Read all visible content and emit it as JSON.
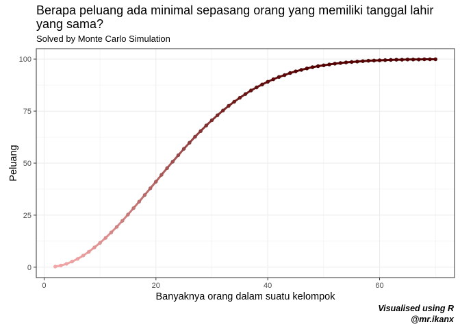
{
  "chart_data": {
    "type": "line",
    "title": "Berapa peluang ada minimal sepasang orang yang memiliki tanggal lahir yang sama?",
    "subtitle": "Solved by Monte Carlo Simulation",
    "xlabel": "Banyaknya orang dalam suatu kelompok",
    "ylabel": "Peluang",
    "caption_line1": "Visualised using R",
    "caption_line2": "@mr.ikanx",
    "xlim": [
      -1.4,
      73.4
    ],
    "ylim": [
      -5,
      105
    ],
    "x_ticks": [
      0,
      20,
      40,
      60
    ],
    "y_ticks": [
      0,
      25,
      50,
      75,
      100
    ],
    "x_tick_labels": [
      "0",
      "20",
      "40",
      "60"
    ],
    "y_tick_labels": [
      "0",
      "25",
      "50",
      "75",
      "100"
    ],
    "grid": true,
    "line_color_low": "#f4a6a6",
    "line_color_high": "#5a0000",
    "series": [
      {
        "x": [
          2,
          3,
          4,
          5,
          6,
          7,
          8,
          9,
          10,
          11,
          12,
          13,
          14,
          15,
          16,
          17,
          18,
          19,
          20,
          21,
          22,
          23,
          24,
          25,
          26,
          27,
          28,
          29,
          30,
          31,
          32,
          33,
          34,
          35,
          36,
          37,
          38,
          39,
          40,
          41,
          42,
          43,
          44,
          45,
          46,
          47,
          48,
          49,
          50,
          51,
          52,
          53,
          54,
          55,
          56,
          57,
          58,
          59,
          60,
          61,
          62,
          63,
          64,
          65,
          66,
          67,
          68,
          69,
          70
        ],
        "values": [
          0.3,
          0.8,
          1.6,
          2.7,
          4.0,
          5.6,
          7.4,
          9.5,
          11.7,
          14.1,
          16.7,
          19.4,
          22.3,
          25.3,
          28.4,
          31.5,
          34.7,
          37.9,
          41.1,
          44.4,
          47.6,
          50.7,
          53.8,
          56.9,
          59.8,
          62.7,
          65.4,
          68.1,
          70.6,
          73.0,
          75.3,
          77.5,
          79.5,
          81.4,
          83.2,
          84.9,
          86.4,
          87.8,
          89.1,
          90.3,
          91.4,
          92.3,
          93.3,
          94.1,
          94.8,
          95.5,
          96.1,
          96.6,
          97.0,
          97.4,
          97.8,
          98.1,
          98.4,
          98.6,
          98.8,
          99.0,
          99.2,
          99.3,
          99.4,
          99.5,
          99.6,
          99.7,
          99.7,
          99.8,
          99.8,
          99.8,
          99.9,
          99.9,
          99.9
        ]
      }
    ]
  }
}
